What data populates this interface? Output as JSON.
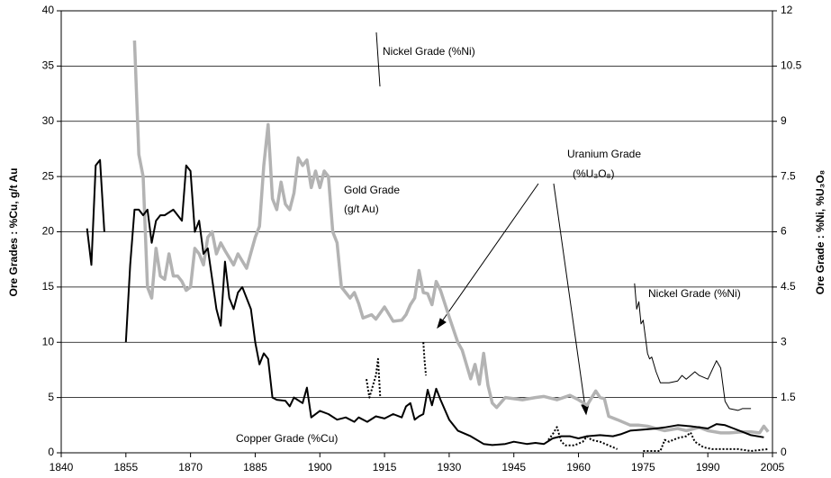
{
  "chart_data": {
    "type": "line",
    "ylabel": "Ore Grades : %Cu, g/t Au",
    "y2label": "Ore Grade : %Ni, %U₃O₈",
    "xlim": [
      1840,
      2005
    ],
    "xticks": [
      1840,
      1855,
      1870,
      1885,
      1900,
      1915,
      1930,
      1945,
      1960,
      1975,
      1990,
      2005
    ],
    "ylim": [
      0,
      40
    ],
    "yticks": [
      0,
      5,
      10,
      15,
      20,
      25,
      30,
      35,
      40
    ],
    "y2lim": [
      0,
      12
    ],
    "y2ticks": [
      0,
      1.5,
      3,
      4.5,
      6,
      7.5,
      9,
      10.5,
      12
    ],
    "grid": true,
    "annotations": [
      "Nickel Grade (%Ni)",
      "Gold Grade",
      "(g/t Au)",
      "Uranium Grade",
      "(%U₃O₈)",
      "Nickel Grade (%Ni)",
      "Copper Grade (%Cu)"
    ],
    "series": [
      {
        "name": "Gold Grade (g/t Au)",
        "color": "#b3b3b3",
        "width": 3.5,
        "x": [
          1857,
          1858,
          1859,
          1860,
          1861,
          1862,
          1863,
          1864,
          1865,
          1866,
          1867,
          1868,
          1869,
          1870,
          1871,
          1872,
          1873,
          1874,
          1875,
          1876,
          1877,
          1878,
          1880,
          1881,
          1883,
          1885,
          1886,
          1887,
          1888,
          1889,
          1890,
          1891,
          1892,
          1893,
          1894,
          1895,
          1896,
          1897,
          1898,
          1899,
          1900,
          1901,
          1902,
          1903,
          1904,
          1905,
          1906,
          1907,
          1908,
          1909,
          1910,
          1912,
          1913,
          1915,
          1917,
          1919,
          1920,
          1921,
          1922,
          1923,
          1924,
          1925,
          1926,
          1927,
          1928,
          1930,
          1932,
          1933,
          1935,
          1936,
          1937,
          1938,
          1939,
          1940,
          1941,
          1943,
          1945,
          1947,
          1950,
          1952,
          1955,
          1958,
          1960,
          1962,
          1964,
          1965,
          1966,
          1967,
          1969,
          1972,
          1974,
          1976,
          1978,
          1980,
          1983,
          1985,
          1988,
          1990,
          1993,
          1995,
          1998,
          2000,
          2002,
          2003,
          2004
        ],
        "values": [
          37.3,
          27,
          25,
          15,
          14,
          18.5,
          16,
          15.7,
          18,
          16,
          16,
          15.5,
          14.7,
          15,
          18.5,
          18,
          17,
          19.5,
          20,
          18,
          19,
          18.3,
          17,
          18,
          16.7,
          19.5,
          20.5,
          26,
          29.7,
          23,
          22,
          24.5,
          22.5,
          22,
          23.5,
          26.7,
          26,
          26.5,
          24,
          25.5,
          24,
          25.5,
          25,
          20,
          19,
          15,
          14.5,
          14,
          14.5,
          13.5,
          12.2,
          12.5,
          12.1,
          13.2,
          11.9,
          12,
          12.5,
          13.4,
          14,
          16.5,
          14.5,
          14.4,
          13.4,
          15.5,
          14.7,
          12.3,
          10,
          9.3,
          6.7,
          8,
          6.2,
          9,
          6.1,
          4.5,
          4.1,
          5,
          4.9,
          4.8,
          5,
          5.1,
          4.8,
          5.2,
          4.8,
          4.3,
          5.6,
          5,
          4.9,
          3.3,
          3,
          2.5,
          2.5,
          2.4,
          2.2,
          2,
          2.2,
          2,
          2.3,
          2,
          1.8,
          1.8,
          1.9,
          1.9,
          1.8,
          2.4,
          1.9
        ]
      },
      {
        "name": "Copper Grade (%Cu)",
        "color": "#000000",
        "width": 2,
        "x": [
          1846,
          1847,
          1848,
          1849,
          1850,
          1852,
          1855,
          1856,
          1857,
          1858,
          1859,
          1860,
          1861,
          1862,
          1863,
          1864,
          1866,
          1868,
          1869,
          1870,
          1871,
          1872,
          1873,
          1874,
          1876,
          1877,
          1878,
          1879,
          1880,
          1881,
          1882,
          1884,
          1885,
          1886,
          1887,
          1888,
          1889,
          1890,
          1892,
          1893,
          1894,
          1896,
          1897,
          1898,
          1900,
          1902,
          1904,
          1906,
          1908,
          1909,
          1911,
          1913,
          1915,
          1917,
          1919,
          1920,
          1921,
          1922,
          1923,
          1924,
          1925,
          1926,
          1927,
          1928,
          1930,
          1932,
          1935,
          1938,
          1940,
          1943,
          1945,
          1948,
          1950,
          1952,
          1954,
          1956,
          1958,
          1960,
          1962,
          1965,
          1968,
          1970,
          1972,
          1975,
          1978,
          1980,
          1983,
          1986,
          1990,
          1992,
          1994,
          1996,
          1998,
          2000,
          2003
        ],
        "values": [
          20.3,
          17,
          26,
          26.5,
          20,
          null,
          10,
          17,
          22,
          22,
          21.5,
          22,
          19,
          21,
          21.5,
          21.5,
          22,
          21,
          26,
          25.5,
          20,
          21,
          18,
          18.5,
          13,
          11.5,
          17.3,
          14,
          13,
          14.5,
          15,
          13,
          10,
          8,
          9,
          8.5,
          5,
          4.8,
          4.7,
          4.2,
          5,
          4.5,
          5.9,
          3.2,
          3.8,
          3.5,
          3,
          3.2,
          2.8,
          3.2,
          2.8,
          3.3,
          3.1,
          3.5,
          3.2,
          4.2,
          4.5,
          3,
          3.3,
          3.5,
          5.7,
          4.3,
          5.8,
          4.8,
          3,
          2,
          1.5,
          0.8,
          0.7,
          0.8,
          1,
          0.8,
          0.9,
          0.8,
          1.3,
          1.5,
          1.5,
          1.3,
          1.5,
          1.6,
          1.5,
          1.7,
          2,
          2.1,
          2.2,
          2.3,
          2.5,
          2.4,
          2.2,
          2.6,
          2.5,
          2.2,
          1.9,
          1.6,
          1.4
        ]
      },
      {
        "name": "Nickel Grade (%Ni)",
        "color": "#000000",
        "width": 1,
        "axis": "y2",
        "x": [
          1973,
          1973.5,
          1974,
          1974.5,
          1975,
          1976,
          1976.5,
          1977,
          1978,
          1979,
          1981,
          1983,
          1984,
          1985,
          1987,
          1988,
          1990,
          1992,
          1993,
          1994,
          1995,
          1997,
          1998,
          2000
        ],
        "values": [
          4.6,
          3.9,
          4.1,
          3.5,
          3.6,
          2.7,
          2.55,
          2.6,
          2.2,
          1.9,
          1.9,
          1.95,
          2.1,
          2,
          2.2,
          2.1,
          2,
          2.5,
          2.3,
          1.4,
          1.2,
          1.15,
          1.2,
          1.2
        ]
      },
      {
        "name": "Uranium Grade (%U₃O₈)",
        "color": "#000000",
        "width": 2,
        "dash": "2 2",
        "axis": "y2",
        "x": [
          1910.8,
          1911.5,
          1912,
          1913,
          1913.5,
          1914,
          1918,
          1924,
          1924.3,
          1924.6,
          1935,
          1953,
          1954,
          1955,
          1956,
          1957,
          1959,
          1961,
          1962,
          1963,
          1965,
          1967,
          1969,
          1972,
          1975,
          1979,
          1980,
          1981,
          1983,
          1985,
          1986,
          1987,
          1989,
          1991,
          1994,
          1997,
          2000,
          2004
        ],
        "values": [
          2,
          1.5,
          1.7,
          2.1,
          2.55,
          1.5,
          null,
          3,
          2.5,
          2.1,
          null,
          0.35,
          0.5,
          0.7,
          0.3,
          0.2,
          0.2,
          0.3,
          0.45,
          0.35,
          0.3,
          0.2,
          0.1,
          null,
          0.05,
          0.05,
          0.35,
          0.3,
          0.4,
          0.45,
          0.55,
          0.3,
          0.15,
          0.1,
          0.1,
          0.1,
          0.05,
          0.1
        ]
      }
    ]
  }
}
